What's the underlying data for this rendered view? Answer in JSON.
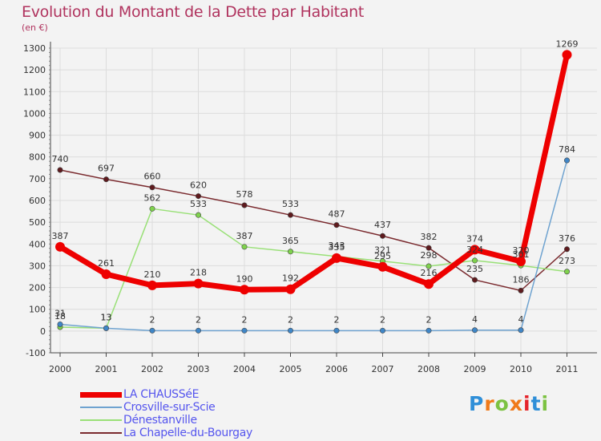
{
  "title": "Evolution du Montant de la Dette par Habitant",
  "subtitle": "(en €)",
  "logo": {
    "letters": [
      "P",
      "r",
      "o",
      "x",
      "i",
      "t",
      "i"
    ],
    "colors": [
      "#2f8fd8",
      "#f07a1a",
      "#7cc242",
      "#f07a1a",
      "#e5242b",
      "#2f8fd8",
      "#7cc242"
    ]
  },
  "chart_data": {
    "type": "line",
    "x": [
      "2000",
      "2001",
      "2002",
      "2003",
      "2004",
      "2005",
      "2006",
      "2007",
      "2008",
      "2009",
      "2010",
      "2011"
    ],
    "ylim": [
      -100,
      1300
    ],
    "yticks": [
      "-100",
      "0",
      "100",
      "200",
      "300",
      "400",
      "500",
      "600",
      "700",
      "800",
      "900",
      "1000",
      "1100",
      "1200",
      "1300"
    ],
    "grid": true,
    "legend_position": "bottom-left",
    "series": [
      {
        "name": "La Chapelle-du-Bourgay",
        "color": "#7a2a2e",
        "dot": "#5e1a1d",
        "values": [
          740,
          697,
          660,
          620,
          578,
          533,
          487,
          437,
          382,
          235,
          186,
          376
        ],
        "labels": [
          "740",
          "697",
          "660",
          "620",
          "578",
          "533",
          "487",
          "437",
          "382",
          "235",
          "186",
          "376"
        ]
      },
      {
        "name": "Dénestanville",
        "color": "#99e077",
        "dot": "#7fd24d",
        "values": [
          18,
          13,
          562,
          533,
          387,
          365,
          343,
          321,
          298,
          324,
          301,
          273
        ],
        "labels": [
          "18",
          "13",
          "562",
          "533",
          "387",
          "365",
          "343",
          "321",
          "298",
          "324",
          "301",
          "273"
        ]
      },
      {
        "name": "Crosville-sur-Scie",
        "color": "#6fa3d0",
        "dot": "#3f86c7",
        "values": [
          31,
          13,
          2,
          2,
          2,
          2,
          2,
          2,
          2,
          4,
          4,
          784
        ],
        "labels": [
          "31",
          "13",
          "2",
          "2",
          "2",
          "2",
          "2",
          "2",
          "2",
          "4",
          "4",
          "784"
        ]
      },
      {
        "name": "LA CHAUSSéE",
        "color": "#ee0000",
        "dot": "#ee0000",
        "values": [
          387,
          261,
          210,
          218,
          190,
          192,
          335,
          295,
          216,
          374,
          320,
          1269
        ],
        "labels": [
          "387",
          "261",
          "210",
          "218",
          "190",
          "192",
          "335",
          "295",
          "216",
          "374",
          "320",
          "1269"
        ]
      }
    ]
  },
  "legend": [
    {
      "label": "LA CHAUSSéE",
      "color": "#ee0000",
      "text_color": "#5555ee"
    },
    {
      "label": "Crosville-sur-Scie",
      "color": "#6fa3d0",
      "text_color": "#5555ee"
    },
    {
      "label": "Dénestanville",
      "color": "#99e077",
      "text_color": "#5555ee"
    },
    {
      "label": "La Chapelle-du-Bourgay",
      "color": "#7a2a2e",
      "text_color": "#5555ee"
    }
  ]
}
